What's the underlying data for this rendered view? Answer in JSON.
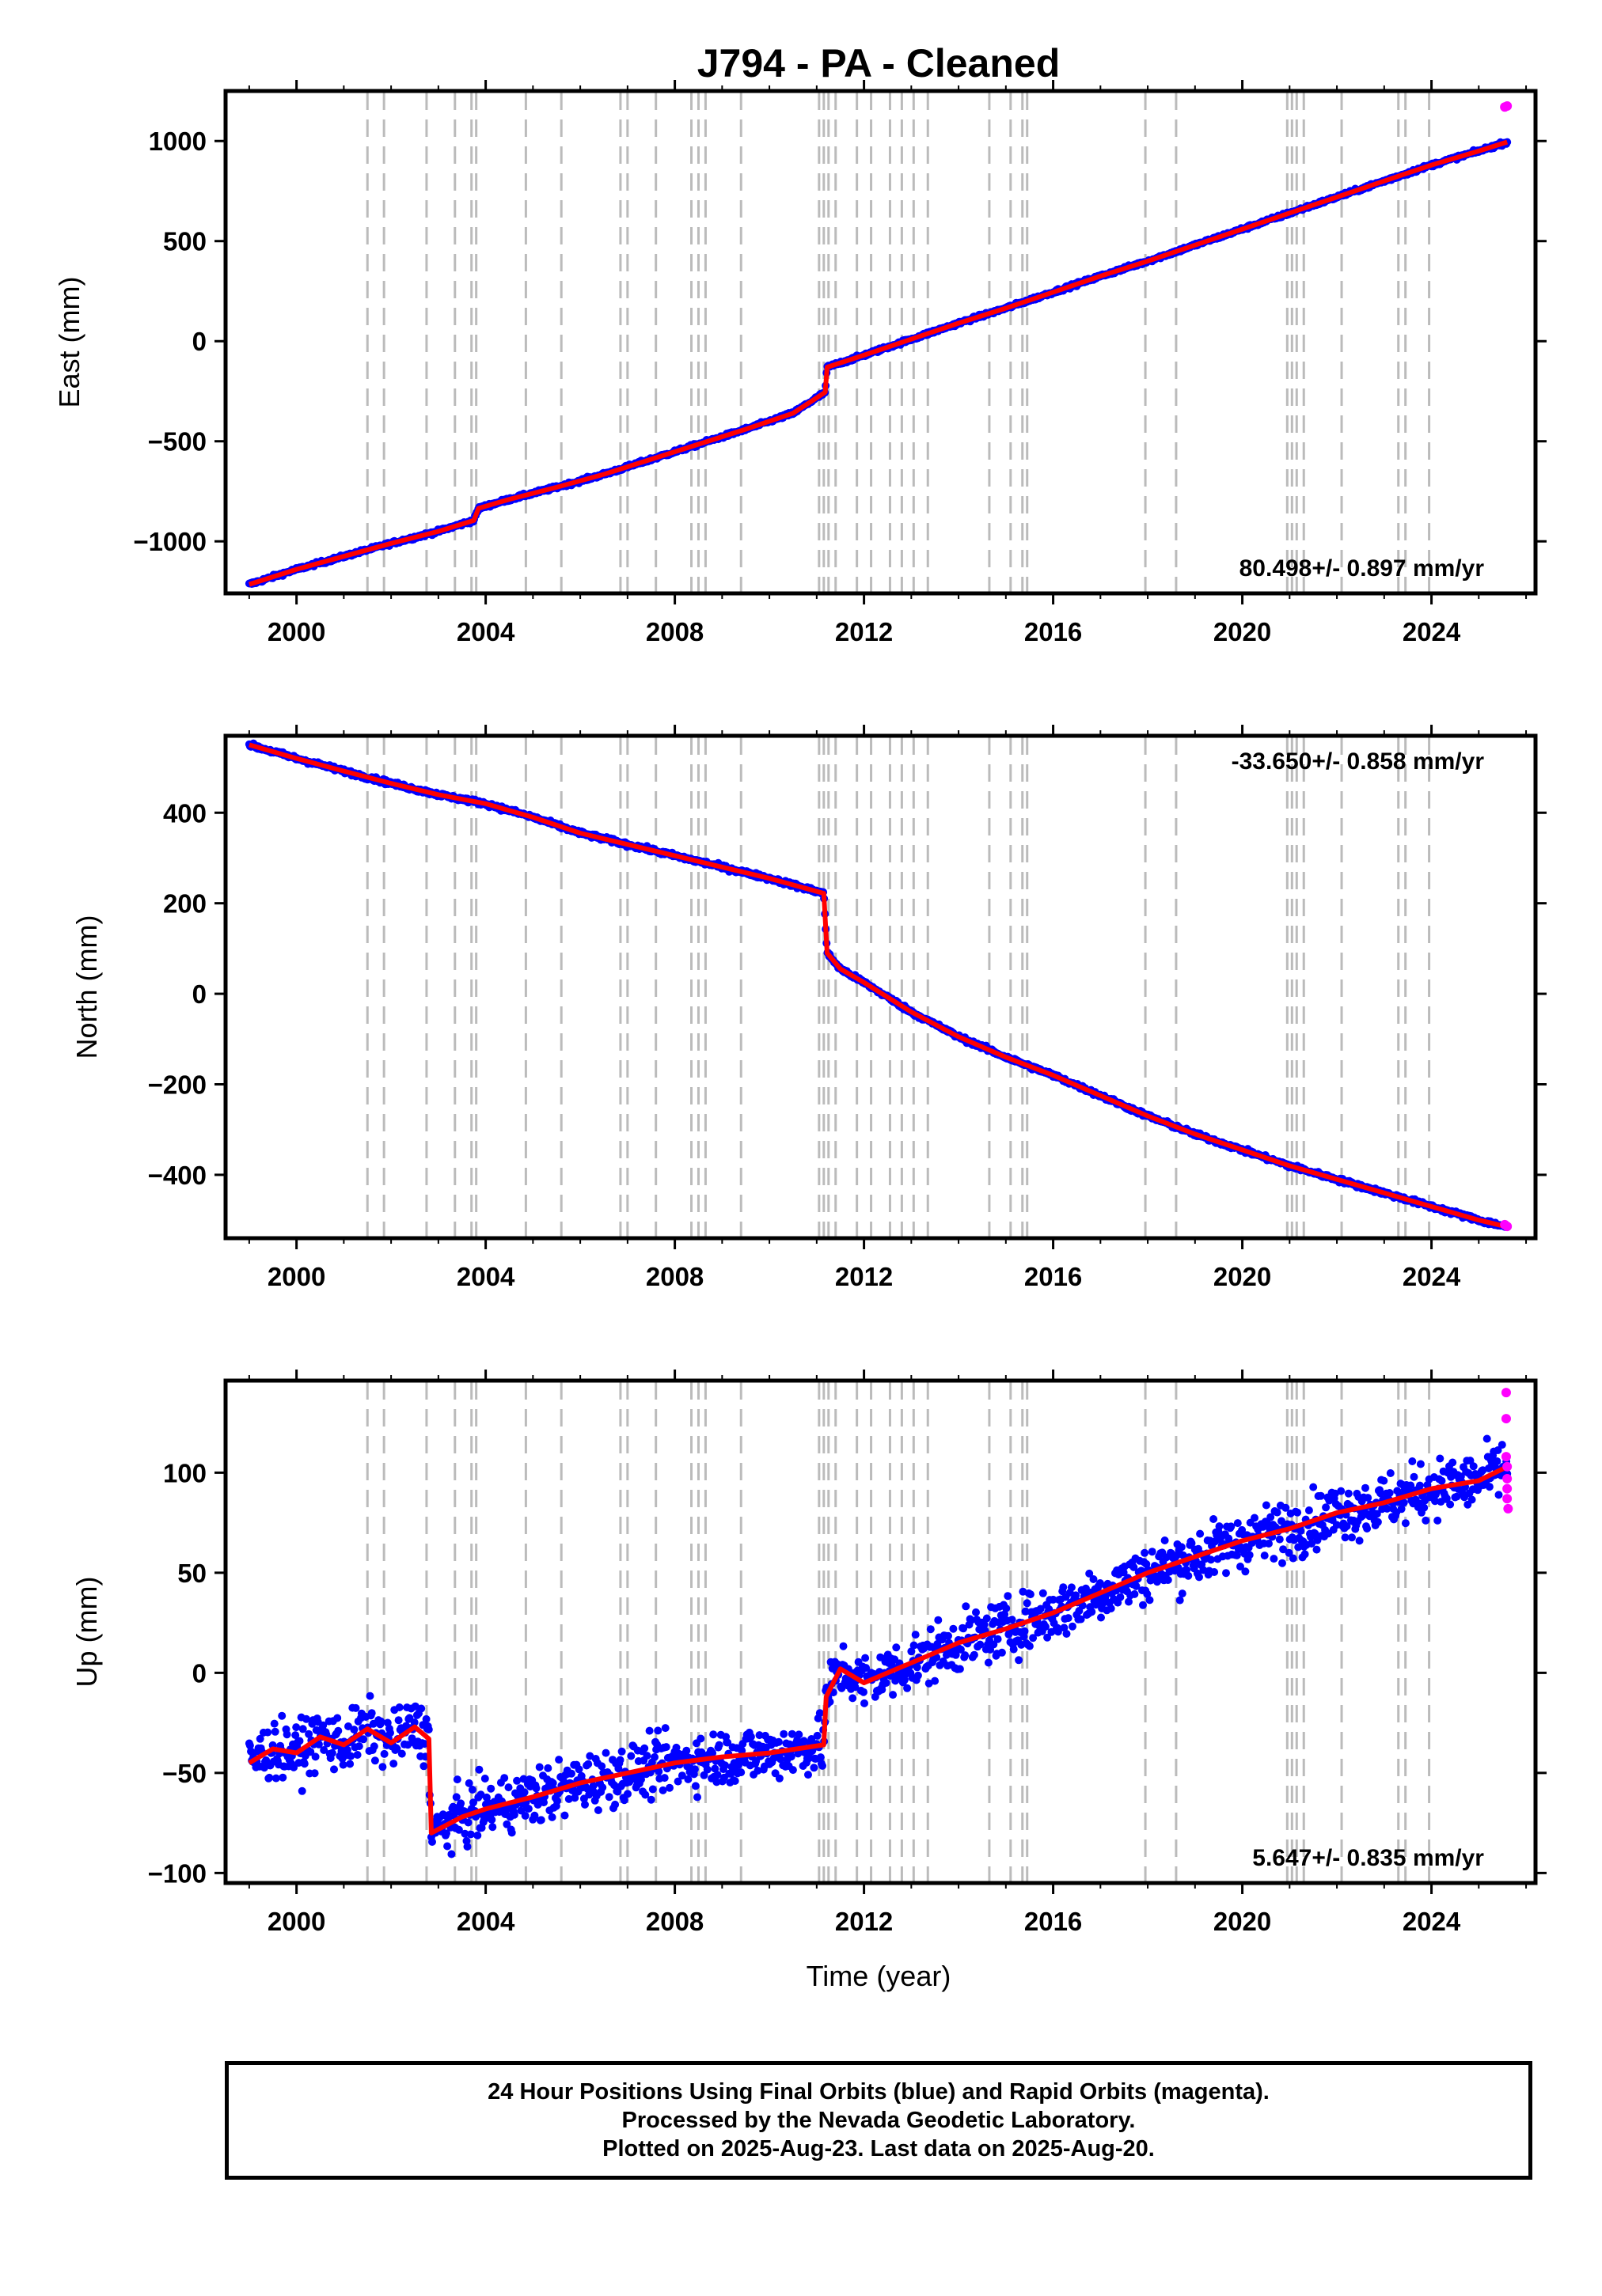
{
  "title": "J794  - PA - Cleaned",
  "x_axis_label": "Time (year)",
  "footer": {
    "line1": "24 Hour Positions Using Final Orbits (blue) and Rapid Orbits (magenta).",
    "line2": "Processed by the Nevada Geodetic Laboratory.",
    "line3": "Plotted on 2025-Aug-23. Last data on 2025-Aug-20."
  },
  "colors": {
    "final_orbits": "#0000ff",
    "rapid_orbits": "#ff00ff",
    "model": "#ff0000",
    "event_lines": "#bbbbbb"
  },
  "chart_data": [
    {
      "type": "scatter",
      "name": "east",
      "ylabel": "East (mm)",
      "rate_text": "80.498+/- 0.897 mm/yr",
      "rate_position": "bottom-right",
      "xlim": [
        1998.5,
        2026.2
      ],
      "ylim": [
        -1260,
        1250
      ],
      "xticks": [
        2000,
        2004,
        2008,
        2012,
        2016,
        2020,
        2024
      ],
      "yticks": [
        -1000,
        -500,
        0,
        500,
        1000
      ],
      "ytick_labels": [
        "−1000",
        "−500",
        "0",
        "500",
        "1000"
      ],
      "series": [
        {
          "values": [
            [
              1999.0,
              -1215
            ],
            [
              2000.0,
              -1140
            ],
            [
              2001.0,
              -1075
            ],
            [
              2002.0,
              -1010
            ],
            [
              2003.0,
              -950
            ],
            [
              2003.75,
              -895
            ],
            [
              2003.85,
              -835
            ],
            [
              2004.5,
              -790
            ],
            [
              2005.5,
              -730
            ],
            [
              2006.5,
              -665
            ],
            [
              2007.5,
              -590
            ],
            [
              2008.5,
              -515
            ],
            [
              2009.5,
              -440
            ],
            [
              2010.5,
              -360
            ],
            [
              2011.18,
              -255
            ],
            [
              2011.22,
              -130
            ],
            [
              2012.0,
              -70
            ],
            [
              2013.0,
              10
            ],
            [
              2014.0,
              90
            ],
            [
              2015.0,
              165
            ],
            [
              2016.0,
              245
            ],
            [
              2017.0,
              325
            ],
            [
              2018.0,
              400
            ],
            [
              2019.0,
              480
            ],
            [
              2020.0,
              560
            ],
            [
              2021.0,
              640
            ],
            [
              2022.0,
              720
            ],
            [
              2023.0,
              800
            ],
            [
              2024.0,
              880
            ],
            [
              2025.0,
              950
            ],
            [
              2025.6,
              995
            ]
          ]
        }
      ],
      "rapid_points": [
        [
          2025.55,
          1170
        ],
        [
          2025.6,
          1175
        ]
      ]
    },
    {
      "type": "scatter",
      "name": "north",
      "ylabel": "North (mm)",
      "rate_text": "-33.650+/- 0.858 mm/yr",
      "rate_position": "top-right",
      "xlim": [
        1998.5,
        2026.2
      ],
      "ylim": [
        -540,
        570
      ],
      "xticks": [
        2000,
        2004,
        2008,
        2012,
        2016,
        2020,
        2024
      ],
      "yticks": [
        -400,
        -200,
        0,
        200,
        400
      ],
      "ytick_labels": [
        "−400",
        "−200",
        "0",
        "200",
        "400"
      ],
      "series": [
        {
          "values": [
            [
              1999.0,
              550
            ],
            [
              2000.0,
              520
            ],
            [
              2001.0,
              492
            ],
            [
              2002.0,
              465
            ],
            [
              2003.0,
              440
            ],
            [
              2004.0,
              420
            ],
            [
              2005.0,
              390
            ],
            [
              2006.0,
              355
            ],
            [
              2007.0,
              330
            ],
            [
              2008.0,
              305
            ],
            [
              2009.0,
              280
            ],
            [
              2010.0,
              255
            ],
            [
              2011.15,
              222
            ],
            [
              2011.22,
              90
            ],
            [
              2011.5,
              55
            ],
            [
              2012.0,
              25
            ],
            [
              2013.0,
              -40
            ],
            [
              2014.0,
              -95
            ],
            [
              2015.0,
              -140
            ],
            [
              2016.0,
              -180
            ],
            [
              2017.0,
              -225
            ],
            [
              2018.0,
              -270
            ],
            [
              2019.0,
              -310
            ],
            [
              2020.0,
              -345
            ],
            [
              2021.0,
              -380
            ],
            [
              2022.0,
              -410
            ],
            [
              2023.0,
              -440
            ],
            [
              2024.0,
              -470
            ],
            [
              2025.0,
              -500
            ],
            [
              2025.6,
              -515
            ]
          ]
        }
      ],
      "rapid_points": [
        [
          2025.55,
          -510
        ],
        [
          2025.6,
          -514
        ]
      ]
    },
    {
      "type": "scatter",
      "name": "up",
      "ylabel": "Up (mm)",
      "rate_text": "5.647+/- 0.835 mm/yr",
      "rate_position": "bottom-right",
      "xlim": [
        1998.5,
        2026.2
      ],
      "ylim": [
        -105,
        146
      ],
      "xticks": [
        2000,
        2004,
        2008,
        2012,
        2016,
        2020,
        2024
      ],
      "yticks": [
        -100,
        -50,
        0,
        50,
        100
      ],
      "ytick_labels": [
        "−100",
        "−50",
        "0",
        "50",
        "100"
      ],
      "series": [
        {
          "values": [
            [
              1999.0,
              -45
            ],
            [
              1999.5,
              -38
            ],
            [
              2000.0,
              -40
            ],
            [
              2000.5,
              -32
            ],
            [
              2001.0,
              -36
            ],
            [
              2001.5,
              -28
            ],
            [
              2002.0,
              -35
            ],
            [
              2002.5,
              -27
            ],
            [
              2002.8,
              -33
            ],
            [
              2002.85,
              -80
            ],
            [
              2003.5,
              -72
            ],
            [
              2004.0,
              -68
            ],
            [
              2005.0,
              -62
            ],
            [
              2006.0,
              -55
            ],
            [
              2007.0,
              -50
            ],
            [
              2008.0,
              -45
            ],
            [
              2009.0,
              -42
            ],
            [
              2010.0,
              -40
            ],
            [
              2011.15,
              -36
            ],
            [
              2011.2,
              -12
            ],
            [
              2011.5,
              2
            ],
            [
              2012.0,
              -5
            ],
            [
              2013.0,
              5
            ],
            [
              2014.0,
              15
            ],
            [
              2015.0,
              22
            ],
            [
              2016.0,
              30
            ],
            [
              2017.0,
              40
            ],
            [
              2018.0,
              50
            ],
            [
              2019.0,
              58
            ],
            [
              2020.0,
              66
            ],
            [
              2021.0,
              72
            ],
            [
              2022.0,
              80
            ],
            [
              2023.0,
              85
            ],
            [
              2024.0,
              92
            ],
            [
              2025.0,
              96
            ],
            [
              2025.6,
              103
            ]
          ]
        }
      ],
      "rapid_points": [
        [
          2025.58,
          140
        ],
        [
          2025.58,
          127
        ],
        [
          2025.58,
          108
        ],
        [
          2025.6,
          103
        ],
        [
          2025.6,
          97
        ],
        [
          2025.6,
          92
        ],
        [
          2025.6,
          87
        ],
        [
          2025.62,
          82
        ]
      ]
    }
  ],
  "event_lines": [
    2001.5,
    2001.85,
    2002.75,
    2003.35,
    2003.7,
    2003.8,
    2004.85,
    2005.6,
    2006.85,
    2007.0,
    2007.6,
    2008.35,
    2008.5,
    2008.65,
    2009.4,
    2011.05,
    2011.15,
    2011.25,
    2011.4,
    2011.85,
    2012.15,
    2012.55,
    2012.8,
    2013.05,
    2013.35,
    2014.65,
    2015.1,
    2015.35,
    2015.45,
    2017.95,
    2018.6,
    2020.95,
    2021.05,
    2021.15,
    2021.3,
    2022.1,
    2023.3,
    2023.45,
    2023.95
  ]
}
